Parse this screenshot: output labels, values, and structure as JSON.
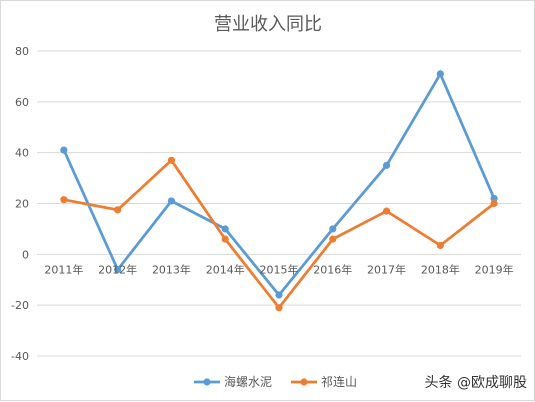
{
  "chart_data": {
    "type": "line",
    "title": "营业收入同比",
    "xlabel": "",
    "ylabel": "",
    "ylim": [
      -40,
      80
    ],
    "yticks": [
      80,
      60,
      40,
      20,
      0,
      -20,
      -40
    ],
    "categories": [
      "2011年",
      "2012年",
      "2013年",
      "2014年",
      "2015年",
      "2016年",
      "2017年",
      "2018年",
      "2019年"
    ],
    "series": [
      {
        "name": "海螺水泥",
        "color": "#5b9bd5",
        "values": [
          41,
          -6,
          21,
          10,
          -16,
          10,
          35,
          71,
          22
        ]
      },
      {
        "name": "祁连山",
        "color": "#ed7d31",
        "values": [
          21.5,
          17.5,
          37,
          6,
          -21,
          6,
          17,
          3.5,
          20
        ]
      }
    ],
    "grid": true,
    "legend_position": "bottom"
  },
  "watermark": "头条 @欧成聊股"
}
